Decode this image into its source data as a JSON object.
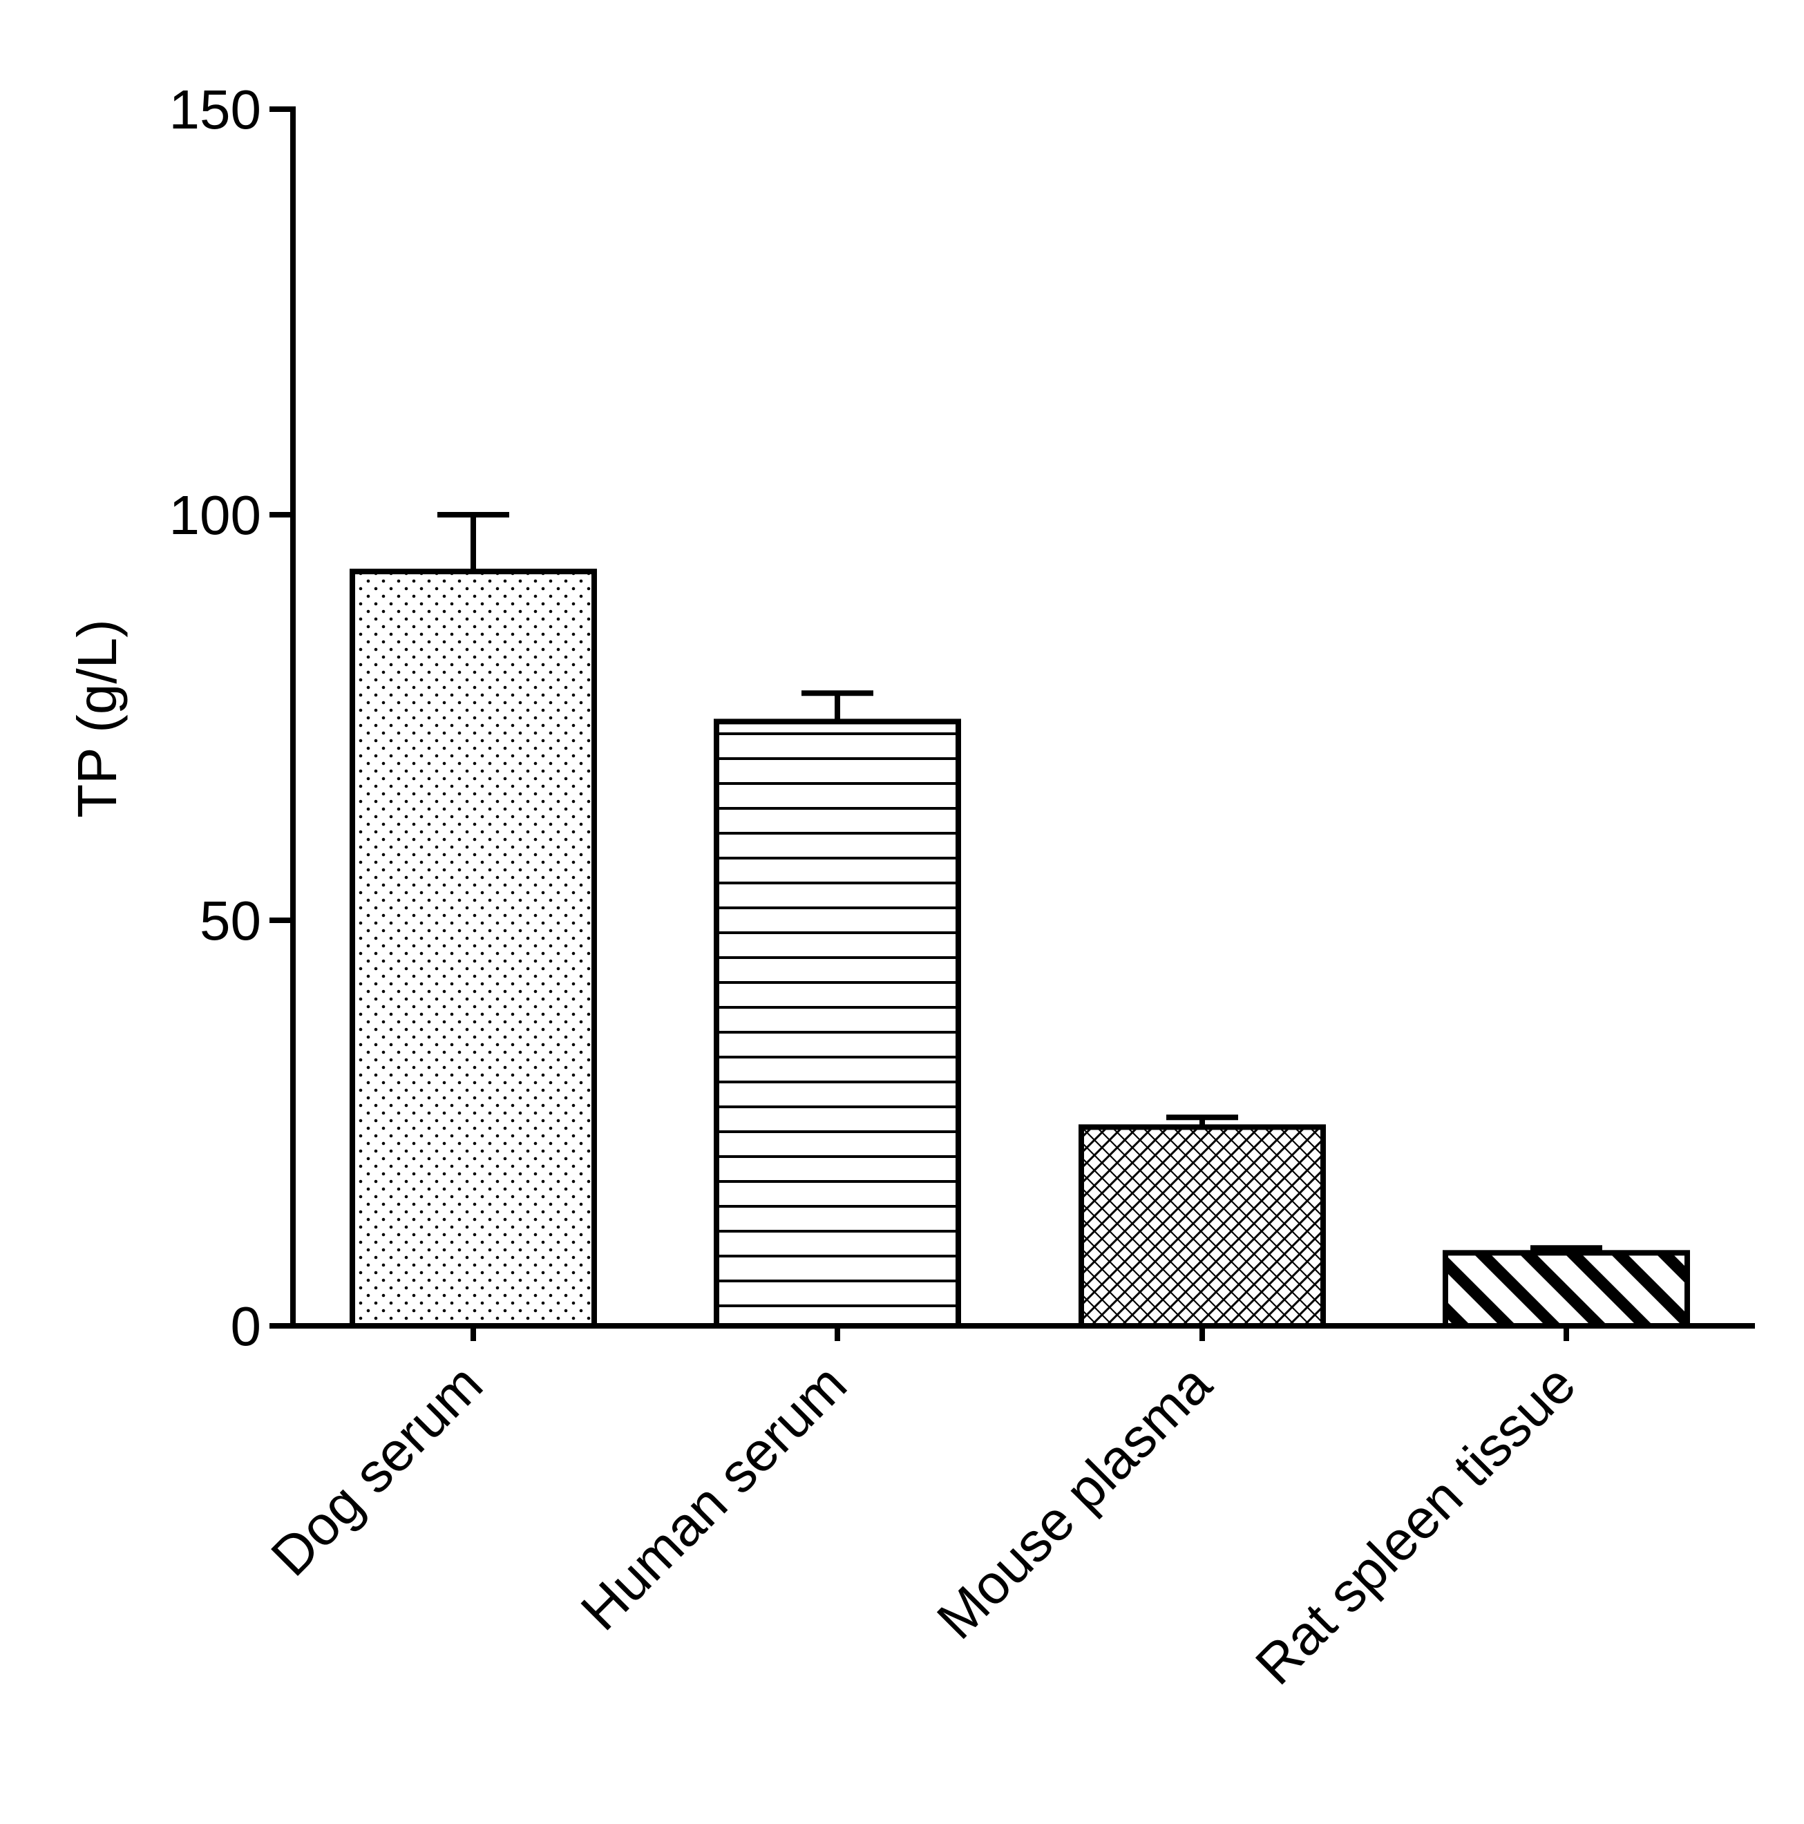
{
  "chart_data": {
    "type": "bar",
    "title": "",
    "xlabel": "",
    "ylabel": "TP (g/L)",
    "ylim": [
      0,
      150
    ],
    "yticks": [
      "0",
      "50",
      "100",
      "150"
    ],
    "grid": false,
    "categories": [
      "Dog serum",
      "Human serum",
      "Mouse plasma",
      "Rat spleen tissue"
    ],
    "values": [
      93,
      74.5,
      24.5,
      9
    ],
    "errors": [
      7,
      3.5,
      1.2,
      0.6
    ],
    "patterns": [
      "dots",
      "horizontal-lines",
      "crosshatch",
      "diagonal-stripes"
    ],
    "colors": {
      "bar_fill": "#ffffff",
      "stroke": "#000000"
    }
  }
}
